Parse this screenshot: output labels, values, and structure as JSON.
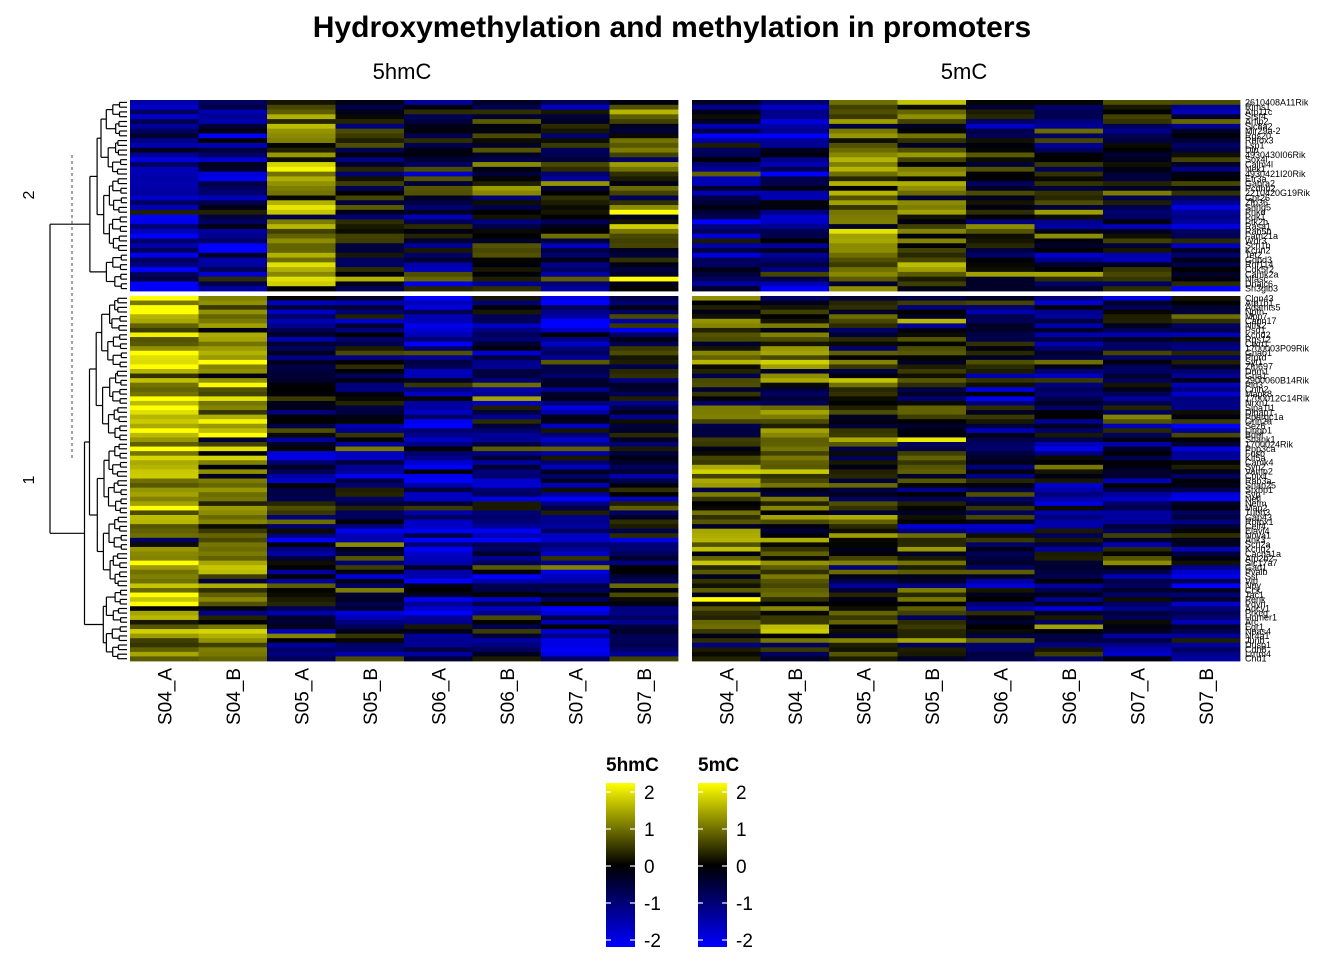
{
  "chart_data": {
    "type": "heatmap",
    "title": "Hydroxymethylation and methylation in promoters",
    "samples": [
      "S04_A",
      "S04_B",
      "S05_A",
      "S05_B",
      "S06_A",
      "S06_B",
      "S07_A",
      "S07_B"
    ],
    "panels": [
      {
        "name": "5hmC",
        "title": "5hmC",
        "cluster_means": [
          {
            "cluster": "2",
            "values": [
              -1.2,
              -1.0,
              1.1,
              0.2,
              -0.3,
              0.1,
              -0.2,
              0.5
            ]
          },
          {
            "cluster": "1",
            "values": [
              1.4,
              0.9,
              -0.6,
              -0.4,
              -1.0,
              -0.7,
              -0.8,
              -0.3
            ]
          }
        ]
      },
      {
        "name": "5mC",
        "title": "5mC",
        "cluster_means": [
          {
            "cluster": "2",
            "values": [
              -0.8,
              -1.0,
              0.6,
              0.5,
              -0.2,
              -0.4,
              -0.5,
              -0.5
            ]
          },
          {
            "cluster": "1",
            "values": [
              0.5,
              0.6,
              0.2,
              0.1,
              -0.3,
              -0.6,
              -0.5,
              -0.6
            ]
          }
        ]
      }
    ],
    "row_clusters": [
      {
        "label": "2",
        "rows": 40,
        "genes": [
          "2610408A11Rik",
          "Rims1",
          "Atp11c",
          "Srsf4",
          "Arfip2",
          "Slc8a2",
          "Mir29a-2",
          "Rgs20",
          "Rbfox3",
          "Lsp1",
          "Dlp",
          "4930430I06Rik",
          "Sox4l",
          "Calm4l",
          "Nek1",
          "4930421I20Rik",
          "Efr3a",
          "Gabra2",
          "Pcdhb2",
          "2210420G19Rik",
          "Gpr26",
          "Zfp36",
          "Snhg5",
          "Pnkd",
          "Pdk1",
          "Ptk2b",
          "Rasa1",
          "Rab5b",
          "Fam21a",
          "Wdr3",
          "Scn1b",
          "Kcnn2",
          "Tet2",
          "Gdpd3",
          "Rnf114",
          "Cdk5r2",
          "Camk2a",
          "Nfasc",
          "Dnajc6",
          "Sh3glb3"
        ]
      },
      {
        "label": "1",
        "rows": 80,
        "genes": [
          "Clgn43",
          "Atp1b1",
          "Adamts5",
          "Nptn",
          "Mpp7",
          "Capn17",
          "Ntrk2",
          "Psd1",
          "Kcnd2",
          "Rgs12",
          "Ctxn1",
          "1700003P09Rik",
          "Gnao1",
          "Ptprd",
          "Syt1",
          "Zfp697",
          "Dnm1",
          "Gria1",
          "2900060B14Rik",
          "Pld3",
          "Cnih2",
          "Mapk8",
          "1700012C14Rik",
          "Nrxn1",
          "Sipa1l1",
          "Dlgap1",
          "Ppargc1a",
          "Grin2a",
          "Sez6",
          "Lingo1",
          "Bdnf",
          "Shank1",
          "1700024Rik",
          "Ppp3ca",
          "Fosb",
          "Kif5a",
          "Camk4",
          "Syn2",
          "Vamp2",
          "Cplx1",
          "Rab3a",
          "Snap25",
          "Stxbp1",
          "Syp",
          "Nefl",
          "Nefm",
          "Map2",
          "Tubb3",
          "Gap43",
          "Rbfox1",
          "Celf4",
          "Elavl4",
          "Nova1",
          "Ank3",
          "Scn2a",
          "Kcnq2",
          "Cacna1a",
          "Atp2b2",
          "Slc17a7",
          "Gad1",
          "Pvalb",
          "Sst",
          "Vip",
          "Npy",
          "Cck",
          "Tac1",
          "Penk",
          "Pdyn",
          "Adcy1",
          "Prkcg",
          "Homer1",
          "Arc",
          "Egr1",
          "Npas4",
          "Nr4a1",
          "Junb",
          "Dusp1",
          "Cdh8",
          "Lrrtm4",
          "Chd1"
        ]
      }
    ],
    "color_scale": {
      "min": -2,
      "mid": 0,
      "max": 2,
      "low": "#0000ff",
      "middle": "#000000",
      "high": "#ffff00"
    },
    "legends": [
      {
        "title": "5hmC",
        "ticks": [
          "2",
          "1",
          "0",
          "-1",
          "-2"
        ]
      },
      {
        "title": "5mC",
        "ticks": [
          "2",
          "1",
          "0",
          "-1",
          "-2"
        ]
      }
    ]
  }
}
